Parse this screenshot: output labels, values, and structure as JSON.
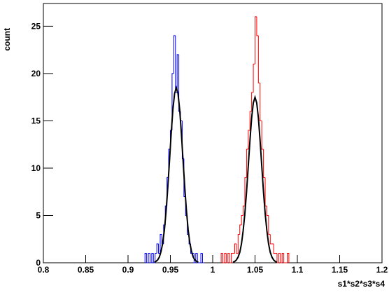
{
  "chart_data": {
    "type": "histogram",
    "y_label": "count",
    "x_label": "s1*s2*s3*s4",
    "xlim": [
      0.8,
      1.2
    ],
    "ylim": [
      0,
      27.4
    ],
    "xticks": [
      0.8,
      0.85,
      0.9,
      0.95,
      1,
      1.05,
      1.1,
      1.15,
      1.2
    ],
    "yticks": [
      0,
      5,
      10,
      15,
      20,
      25
    ],
    "series": [
      {
        "type": "histogram",
        "color": "#0000ff",
        "bins": [
          0.92,
          0.922,
          0.924,
          0.926,
          0.928,
          0.93,
          0.932,
          0.934,
          0.936,
          0.938,
          0.94,
          0.942,
          0.944,
          0.946,
          0.948,
          0.95,
          0.952,
          0.954,
          0.956,
          0.958,
          0.96,
          0.962,
          0.964,
          0.966,
          0.968,
          0.97,
          0.972,
          0.974,
          0.976,
          0.978,
          0.98,
          0.982,
          0.984,
          0.986,
          0.988,
          0.99
        ],
        "values": [
          1,
          0,
          1,
          0,
          1,
          0,
          1,
          2,
          1,
          3,
          2,
          4,
          6,
          9,
          12,
          14,
          20,
          24,
          18,
          22,
          16,
          15,
          11,
          7,
          5,
          3,
          2,
          1,
          1,
          0,
          1,
          0,
          0,
          1,
          0
        ]
      },
      {
        "type": "histogram",
        "color": "#ff0000",
        "bins": [
          1.01,
          1.012,
          1.014,
          1.016,
          1.018,
          1.02,
          1.022,
          1.024,
          1.026,
          1.028,
          1.03,
          1.032,
          1.034,
          1.036,
          1.038,
          1.04,
          1.042,
          1.044,
          1.046,
          1.048,
          1.05,
          1.052,
          1.054,
          1.056,
          1.058,
          1.06,
          1.062,
          1.064,
          1.066,
          1.068,
          1.07,
          1.072,
          1.074,
          1.076,
          1.078,
          1.08,
          1.082,
          1.084,
          1.086,
          1.088,
          1.09
        ],
        "values": [
          1,
          0,
          1,
          0,
          1,
          0,
          1,
          1,
          2,
          1,
          3,
          4,
          5,
          6,
          9,
          12,
          14,
          16,
          18,
          21,
          26,
          24,
          19,
          15,
          12,
          9,
          6,
          5,
          3,
          2,
          2,
          1,
          1,
          0,
          1,
          0,
          1,
          0,
          0,
          1
        ]
      },
      {
        "type": "line",
        "color": "#000000",
        "x": [
          0.931,
          0.933,
          0.935,
          0.937,
          0.939,
          0.941,
          0.943,
          0.945,
          0.947,
          0.949,
          0.951,
          0.953,
          0.955,
          0.957,
          0.959,
          0.961,
          0.963,
          0.965,
          0.967,
          0.969,
          0.971,
          0.973,
          0.975,
          0.977,
          0.979,
          0.981,
          0.983
        ],
        "values": [
          0.06,
          0.15,
          0.3,
          0.6,
          1.2,
          2.1,
          3.5,
          5.5,
          8.0,
          10.8,
          13.7,
          16.2,
          17.9,
          18.5,
          17.9,
          16.2,
          13.7,
          10.8,
          8.0,
          5.5,
          3.5,
          2.1,
          1.2,
          0.6,
          0.3,
          0.15,
          0.06
        ]
      },
      {
        "type": "line",
        "color": "#000000",
        "x": [
          1.024,
          1.026,
          1.028,
          1.03,
          1.032,
          1.034,
          1.036,
          1.038,
          1.04,
          1.042,
          1.044,
          1.046,
          1.048,
          1.05,
          1.052,
          1.054,
          1.056,
          1.058,
          1.06,
          1.062,
          1.064,
          1.066,
          1.068,
          1.07,
          1.072,
          1.074,
          1.076
        ],
        "values": [
          0.06,
          0.14,
          0.3,
          0.6,
          1.1,
          2.0,
          3.4,
          5.2,
          7.5,
          10.2,
          12.9,
          15.3,
          16.9,
          17.5,
          16.9,
          15.3,
          12.9,
          10.2,
          7.5,
          5.2,
          3.4,
          2.0,
          1.1,
          0.6,
          0.3,
          0.14,
          0.06
        ]
      }
    ]
  }
}
